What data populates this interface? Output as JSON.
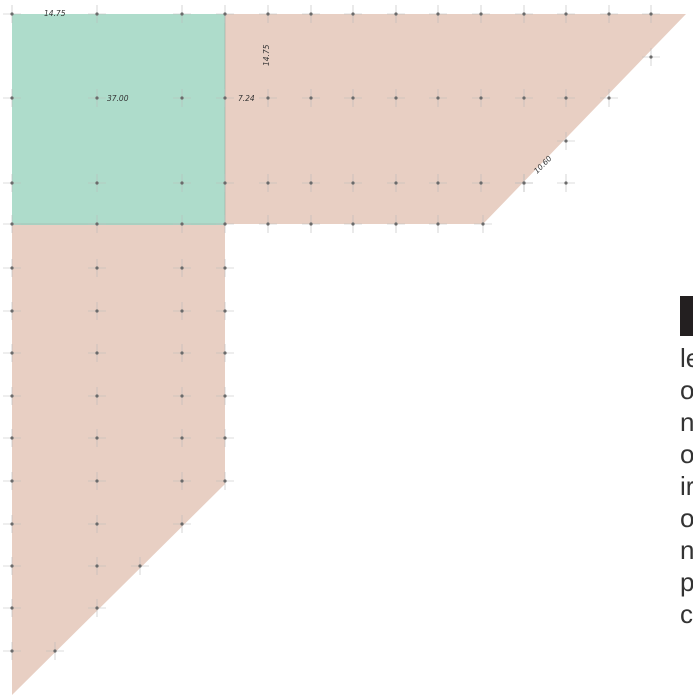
{
  "colors": {
    "room_primary": "#aedccb",
    "room_secondary": "#e8cfc3",
    "grid_node": "#6b6b6b",
    "grid_line": "#b9b9b9"
  },
  "dimensions": {
    "top_left_width": "14.75",
    "room_width": "37.00",
    "gap_width": "7.24",
    "wing_height": "14.75",
    "diagonal_length": "10.60"
  },
  "side_text": {
    "lines": [
      "le",
      "o",
      "n",
      "o",
      "ir",
      "o",
      "n",
      "p",
      "c"
    ]
  }
}
